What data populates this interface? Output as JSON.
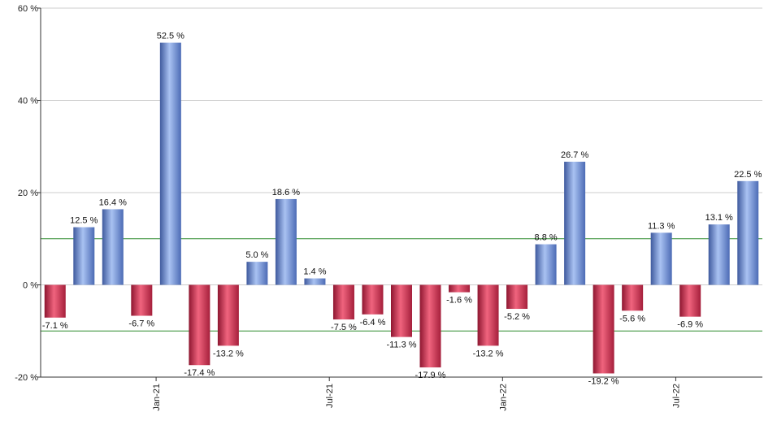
{
  "chart_data": {
    "type": "bar",
    "title": "",
    "xlabel": "",
    "ylabel": "",
    "ylim": [
      -20,
      60
    ],
    "y_ticks": [
      {
        "value": 60,
        "label": "60 %"
      },
      {
        "value": 40,
        "label": "40 %"
      },
      {
        "value": 20,
        "label": "20 %"
      },
      {
        "value": 0,
        "label": "0 %"
      },
      {
        "value": -20,
        "label": "-20 %"
      }
    ],
    "x_ticks": [
      {
        "index": 3.5,
        "label": "Jan-21"
      },
      {
        "index": 9.5,
        "label": "Jul-21"
      },
      {
        "index": 15.5,
        "label": "Jan-22"
      },
      {
        "index": 21.5,
        "label": "Jul-22"
      }
    ],
    "reference_lines": [
      10,
      -10
    ],
    "grid": true,
    "legend": "none",
    "colors": {
      "positive": "#6f8fd6",
      "negative": "#c8334f",
      "reference_line": "#2e8b2e",
      "grid": "#cccccc"
    },
    "values": [
      -7.1,
      12.5,
      16.4,
      -6.7,
      52.5,
      -17.4,
      -13.2,
      5.0,
      18.6,
      1.4,
      -7.5,
      -6.4,
      -11.3,
      -17.9,
      -1.6,
      -13.2,
      -5.2,
      8.8,
      26.7,
      -19.2,
      -5.6,
      11.3,
      -6.9,
      13.1,
      22.5
    ],
    "labels": [
      "-7.1 %",
      "12.5 %",
      "16.4 %",
      "-6.7 %",
      "52.5 %",
      "-17.4 %",
      "-13.2 %",
      "5.0 %",
      "18.6 %",
      "1.4 %",
      "-7.5 %",
      "-6.4 %",
      "-11.3 %",
      "-17.9 %",
      "-1.6 %",
      "-13.2 %",
      "-5.2 %",
      "8.8 %",
      "26.7 %",
      "-19.2 %",
      "-5.6 %",
      "11.3 %",
      "-6.9 %",
      "13.1 %",
      "22.5 %"
    ]
  }
}
